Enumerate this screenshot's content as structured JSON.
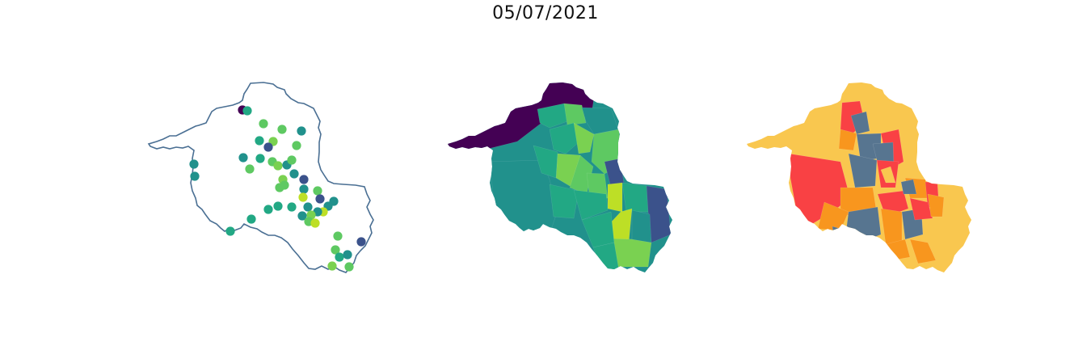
{
  "figure": {
    "title": "05/07/2021"
  },
  "colors": {
    "outline": "#4a6f93",
    "viridis": [
      "#440154",
      "#3b528b",
      "#21918c",
      "#22a884",
      "#5ec962",
      "#7ad151",
      "#bddf26",
      "#fde725"
    ],
    "risk": {
      "high": "#f94144",
      "medium": "#f8961e",
      "low": "#f9c74f",
      "other": "#577590"
    }
  },
  "panels": [
    {
      "name": "points-map"
    },
    {
      "name": "viridis-choropleth-map"
    },
    {
      "name": "risk-choropleth-map"
    }
  ]
}
